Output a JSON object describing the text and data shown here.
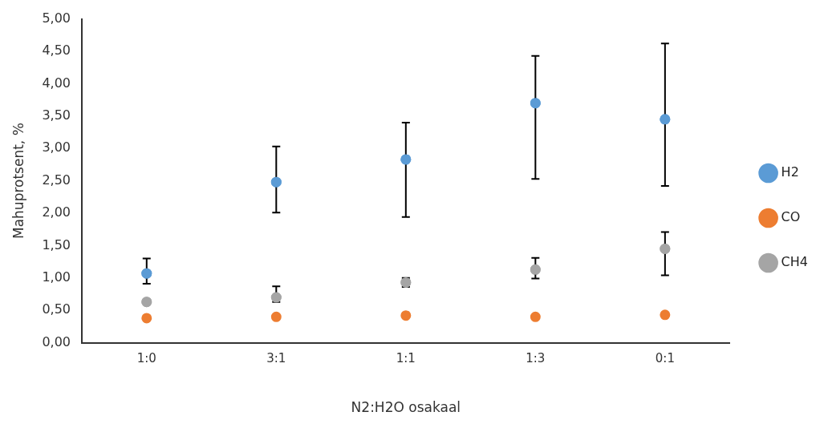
{
  "chart_data": {
    "type": "scatter",
    "xlabel": "N2:H2O osakaal",
    "ylabel": "Mahuprotsent, %",
    "categories": [
      "1:0",
      "3:1",
      "1:1",
      "1:3",
      "0:1"
    ],
    "series": [
      {
        "name": "H2",
        "color": "#5b9bd5",
        "values": [
          1.07,
          2.48,
          2.83,
          3.7,
          3.45
        ],
        "errors": [
          [
            0.91,
            1.3
          ],
          [
            2.01,
            3.03
          ],
          [
            1.94,
            3.4
          ],
          [
            2.53,
            4.43
          ],
          [
            2.42,
            4.62
          ]
        ]
      },
      {
        "name": "CO",
        "color": "#ed7d31",
        "values": [
          0.38,
          0.4,
          0.42,
          0.4,
          0.43
        ]
      },
      {
        "name": "CH4",
        "color": "#a5a5a5",
        "values": [
          0.63,
          0.7,
          0.93,
          1.13,
          1.45
        ],
        "errors": [
          null,
          [
            0.63,
            0.87
          ],
          [
            0.86,
            1.0
          ],
          [
            0.99,
            1.31
          ],
          [
            1.04,
            1.71
          ]
        ]
      }
    ],
    "ylim": [
      0,
      5
    ],
    "yticks": [
      {
        "value": 0,
        "label": "0,00"
      },
      {
        "value": 0.5,
        "label": "0,50"
      },
      {
        "value": 1,
        "label": "1,00"
      },
      {
        "value": 1.5,
        "label": "1,50"
      },
      {
        "value": 2,
        "label": "2,00"
      },
      {
        "value": 2.5,
        "label": "2,50"
      },
      {
        "value": 3,
        "label": "3,00"
      },
      {
        "value": 3.5,
        "label": "3,50"
      },
      {
        "value": 4,
        "label": "4,00"
      },
      {
        "value": 4.5,
        "label": "4,50"
      },
      {
        "value": 5,
        "label": "5,00"
      }
    ],
    "grid": false,
    "legend": "right",
    "marker": "circle"
  }
}
